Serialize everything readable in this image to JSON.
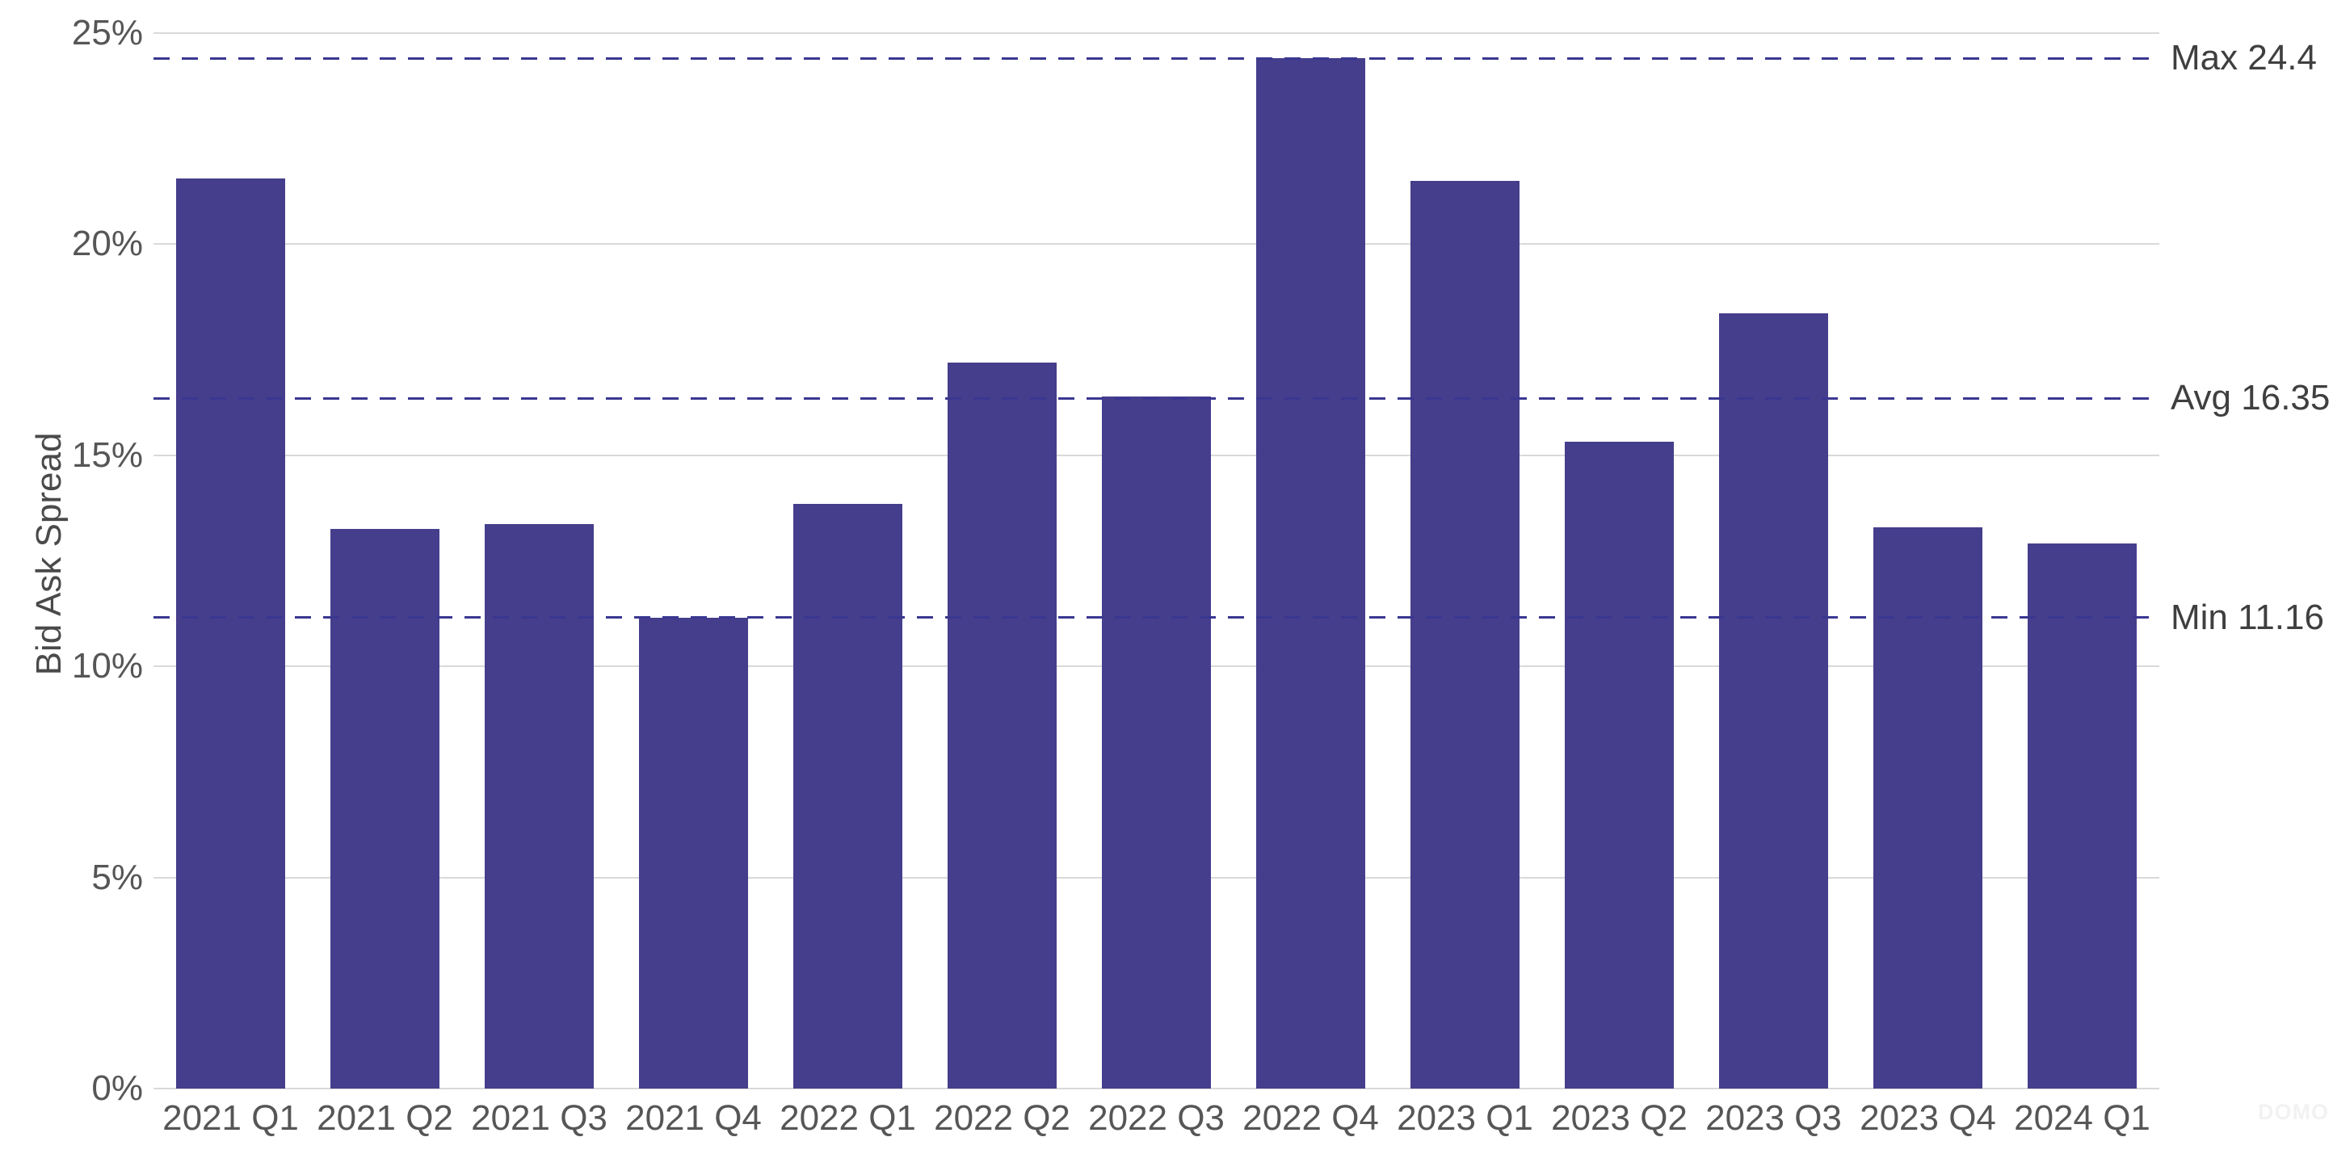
{
  "chart_data": {
    "type": "bar",
    "title": "",
    "xlabel": "",
    "ylabel": "Bid Ask Spread",
    "categories": [
      "2021 Q1",
      "2021 Q2",
      "2021 Q3",
      "2021 Q4",
      "2022 Q1",
      "2022 Q2",
      "2022 Q3",
      "2022 Q4",
      "2023 Q1",
      "2023 Q2",
      "2023 Q3",
      "2023 Q4",
      "2024 Q1"
    ],
    "values": [
      21.55,
      13.25,
      13.37,
      11.16,
      13.85,
      17.2,
      16.4,
      24.4,
      21.5,
      15.33,
      18.37,
      13.3,
      12.92
    ],
    "ylim": [
      0,
      25
    ],
    "y_ticks": [
      {
        "value": 0,
        "label": "0%"
      },
      {
        "value": 5,
        "label": "5%"
      },
      {
        "value": 10,
        "label": "10%"
      },
      {
        "value": 15,
        "label": "15%"
      },
      {
        "value": 20,
        "label": "20%"
      },
      {
        "value": 25,
        "label": "25%"
      }
    ],
    "reference_lines": [
      {
        "name": "max",
        "label": "Max 24.4",
        "value": 24.4
      },
      {
        "name": "avg",
        "label": "Avg 16.35",
        "value": 16.35
      },
      {
        "name": "min",
        "label": "Min 11.16",
        "value": 11.16
      }
    ],
    "grid": true,
    "legend": "none",
    "colors": {
      "bar": "#453e8c",
      "reference_line": "#3a3791",
      "gridline": "#d9d9d9",
      "tick_text": "#565656",
      "annotation_text": "#3f3f3f"
    },
    "watermark": "DOMO"
  }
}
